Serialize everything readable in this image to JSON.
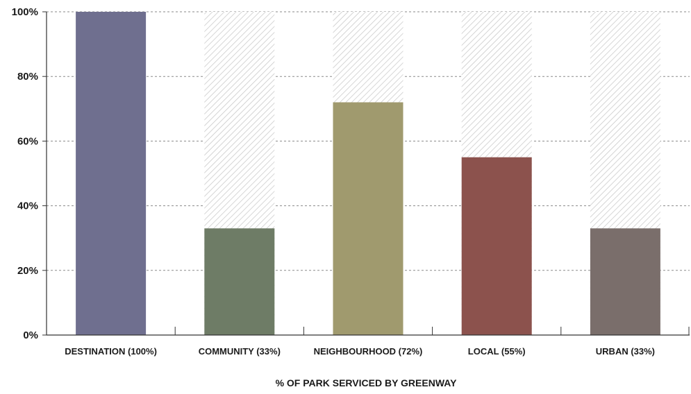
{
  "chart_data": {
    "type": "bar",
    "categories": [
      "DESTINATION (100%)",
      "COMMUNITY (33%)",
      "NEIGHBOURHOOD (72%)",
      "LOCAL (55%)",
      "URBAN (33%)"
    ],
    "values": [
      100,
      33,
      72,
      55,
      33
    ],
    "colors": [
      "#6f6f8f",
      "#6e7c66",
      "#a09a6e",
      "#8c524d",
      "#7a6e6b"
    ],
    "background_max": 100,
    "background_style": "hatched",
    "xlabel": "% OF PARK SERVICED BY GREENWAY",
    "ylabel": "",
    "ylim": [
      0,
      100
    ],
    "yticks": [
      "0%",
      "20%",
      "40%",
      "60%",
      "80%",
      "100%"
    ],
    "grid": true
  }
}
